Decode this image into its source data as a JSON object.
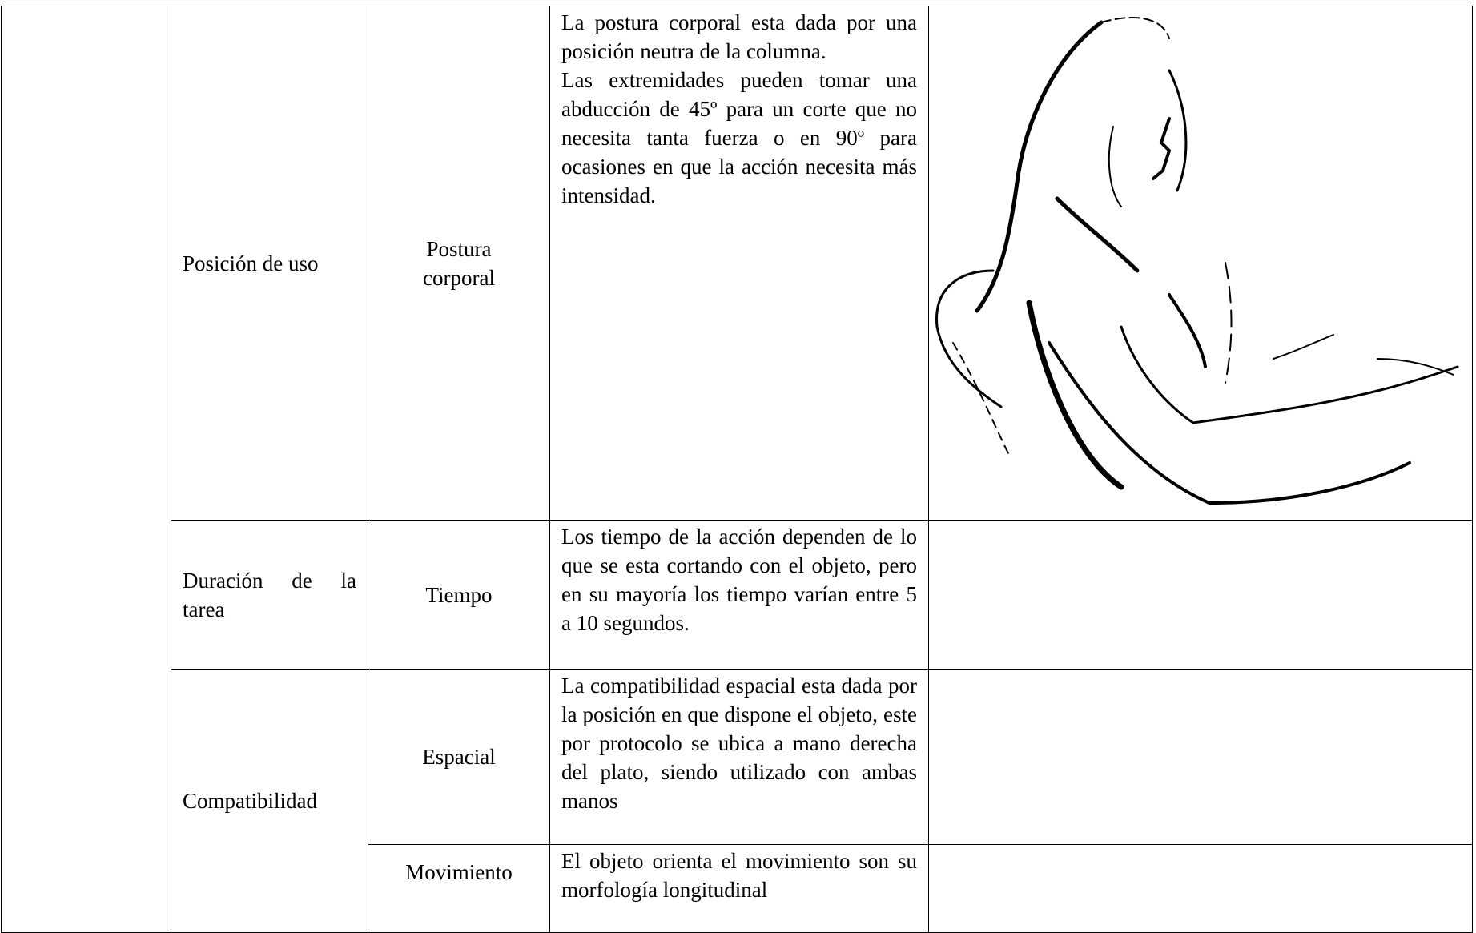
{
  "table": {
    "rows": [
      {
        "factor": "Posición de uso",
        "aspect": "Postura corporal",
        "description": [
          "La postura corporal esta dada por una posición neutra de la columna.",
          "Las extremidades pueden tomar una abducción de 45º para un corte que no necesita tanta fuerza o en 90º para ocasiones en que la acción necesita más intensidad."
        ]
      },
      {
        "factor": "Duración de la tarea",
        "aspect": "Tiempo",
        "description": [
          "Los tiempo de la acción dependen de lo que se esta cortando con el objeto, pero en su mayoría los tiempo varían entre 5 a 10 segundos."
        ]
      },
      {
        "factor": "Compatibilidad",
        "aspect": "Espacial",
        "description": [
          "La compatibilidad espacial esta dada por la posición en que dispone el objeto, este por protocolo se ubica a mano derecha del plato, siendo utilizado con ambas manos"
        ]
      },
      {
        "aspect": "Movimiento",
        "description": [
          "El objeto orienta el movimiento son su morfología longitudinal"
        ]
      }
    ]
  }
}
